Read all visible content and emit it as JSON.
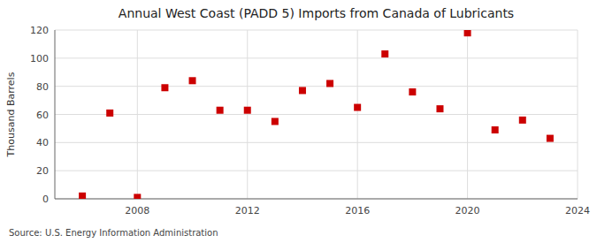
{
  "chart_data": {
    "type": "scatter",
    "title": "Annual West Coast (PADD 5) Imports from Canada of Lubricants",
    "ylabel": "Thousand Barrels",
    "annotations": [
      "Source: U.S. Energy Information Administration"
    ],
    "x": [
      2006,
      2007,
      2008,
      2009,
      2010,
      2011,
      2012,
      2013,
      2014,
      2015,
      2016,
      2017,
      2018,
      2019,
      2020,
      2021,
      2022,
      2023
    ],
    "values": [
      2,
      61,
      1,
      79,
      84,
      63,
      63,
      55,
      77,
      82,
      65,
      103,
      76,
      64,
      118,
      49,
      56,
      43
    ],
    "color": "#cc0000",
    "marker": "square",
    "xlim": [
      2005,
      2024
    ],
    "xticks": [
      2008,
      2012,
      2016,
      2020,
      2024
    ],
    "ylim": [
      0,
      120
    ],
    "yticks": [
      0,
      20,
      40,
      60,
      80,
      100,
      120
    ],
    "grid": true
  }
}
